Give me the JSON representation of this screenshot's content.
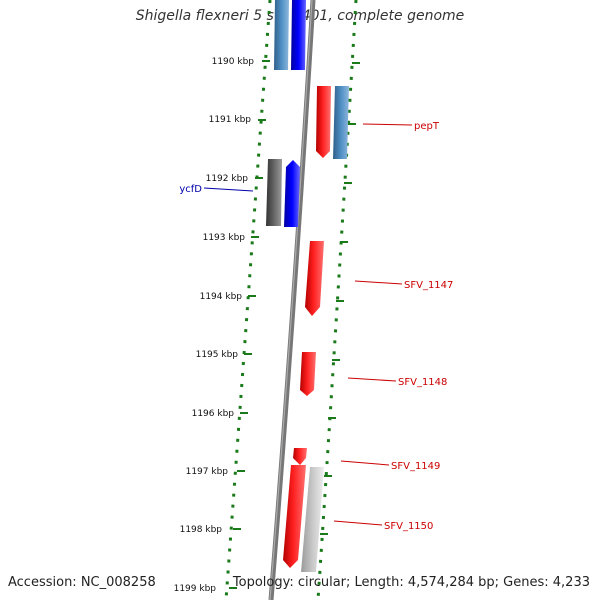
{
  "title": "Shigella flexneri 5 str. 8401, complete genome",
  "footer": {
    "accession": "Accession: NC_008258",
    "summary": "Topology: circular; Length: 4,574,284 bp; Genes: 4,233"
  },
  "ruler": {
    "ticks": [
      "1190 kbp",
      "1191 kbp",
      "1192 kbp",
      "1193 kbp",
      "1194 kbp",
      "1195 kbp",
      "1196 kbp",
      "1197 kbp",
      "1198 kbp",
      "1199 kbp"
    ]
  },
  "gene_labels": [
    {
      "name": "pepT",
      "color": "#cc0000"
    },
    {
      "name": "ycfD",
      "color": "#0000aa"
    },
    {
      "name": "SFV_1147",
      "color": "#cc0000"
    },
    {
      "name": "SFV_1148",
      "color": "#cc0000"
    },
    {
      "name": "SFV_1149",
      "color": "#cc0000"
    },
    {
      "name": "SFV_1150",
      "color": "#cc0000"
    }
  ],
  "colors": {
    "ruler": "#1a7a1a",
    "backbone": "#777777",
    "gene_red": "#ff0000",
    "gene_blue": "#0000ff",
    "gene_steel": "#4682b4",
    "gene_dark_gray": "#555555",
    "gene_light_gray": "#bbbbbb"
  }
}
